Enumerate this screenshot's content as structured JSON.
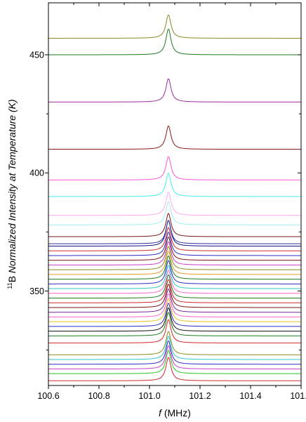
{
  "chart_data": {
    "type": "line",
    "title": "",
    "xlabel": {
      "symbol": "f",
      "rest": " (MHz)"
    },
    "ylabel": {
      "sup": "11",
      "element": "B",
      "rest": " Normalized Intensity at Temperature (K)"
    },
    "xlim": [
      100.6,
      101.6
    ],
    "ylim": [
      310,
      472
    ],
    "x_ticks": [
      100.6,
      100.8,
      101.0,
      101.2,
      101.4,
      101.6
    ],
    "x_tick_labels": [
      "100.6",
      "100.8",
      "101.0",
      "101.2",
      "101.4",
      "101.6"
    ],
    "y_ticks": [
      350,
      400,
      450
    ],
    "y_tick_labels": [
      "350",
      "400",
      "450"
    ],
    "peak_center_mhz": 101.075,
    "peak_width_mhz": 0.012,
    "grid": false,
    "legend": "none",
    "series": [
      {
        "temperature": 312,
        "color": "#d22828",
        "amplitude": 10
      },
      {
        "temperature": 315,
        "color": "#27c427",
        "amplitude": 10
      },
      {
        "temperature": 317,
        "color": "#c83cc8",
        "amplitude": 10
      },
      {
        "temperature": 319,
        "color": "#2d2dc8",
        "amplitude": 10
      },
      {
        "temperature": 321,
        "color": "#2ec8c8",
        "amplitude": 10
      },
      {
        "temperature": 323,
        "color": "#8a8a22",
        "amplitude": 10
      },
      {
        "temperature": 328,
        "color": "#d22828",
        "amplitude": 10
      },
      {
        "temperature": 331,
        "color": "#1e7b1e",
        "amplitude": 10
      },
      {
        "temperature": 333,
        "color": "#111111",
        "amplitude": 10
      },
      {
        "temperature": 335,
        "color": "#2d2dc8",
        "amplitude": 10
      },
      {
        "temperature": 337,
        "color": "#e8c020",
        "amplitude": 10
      },
      {
        "temperature": 339,
        "color": "#ff66cc",
        "amplitude": 10
      },
      {
        "temperature": 341,
        "color": "#7b2a9e",
        "amplitude": 10
      },
      {
        "temperature": 343,
        "color": "#7a1616",
        "amplitude": 10
      },
      {
        "temperature": 345,
        "color": "#d22828",
        "amplitude": 10
      },
      {
        "temperature": 347,
        "color": "#1e7b1e",
        "amplitude": 10
      },
      {
        "temperature": 349,
        "color": "#ff66cc",
        "amplitude": 10
      },
      {
        "temperature": 351,
        "color": "#2ec8c8",
        "amplitude": 10
      },
      {
        "temperature": 353,
        "color": "#2d2dc8",
        "amplitude": 10
      },
      {
        "temperature": 355,
        "color": "#1e7b1e",
        "amplitude": 10
      },
      {
        "temperature": 357,
        "color": "#e89a20",
        "amplitude": 10
      },
      {
        "temperature": 359,
        "color": "#8a8a22",
        "amplitude": 10
      },
      {
        "temperature": 361,
        "color": "#c83cc8",
        "amplitude": 10
      },
      {
        "temperature": 363,
        "color": "#7a1616",
        "amplitude": 10
      },
      {
        "temperature": 365,
        "color": "#2d2dc8",
        "amplitude": 10
      },
      {
        "temperature": 367,
        "color": "#d22828",
        "amplitude": 10
      },
      {
        "temperature": 369,
        "color": "#111188",
        "amplitude": 11
      },
      {
        "temperature": 370,
        "color": "#2d2d9e",
        "amplitude": 10
      },
      {
        "temperature": 373,
        "color": "#7a1616",
        "amplitude": 10
      },
      {
        "temperature": 378,
        "color": "#9ef0f0",
        "amplitude": 10
      },
      {
        "temperature": 382,
        "color": "#ffaaee",
        "amplitude": 10
      },
      {
        "temperature": 390,
        "color": "#44eeee",
        "amplitude": 10
      },
      {
        "temperature": 397,
        "color": "#ff55dd",
        "amplitude": 10
      },
      {
        "temperature": 410,
        "color": "#8a1a1a",
        "amplitude": 10
      },
      {
        "temperature": 430,
        "color": "#9c2a9c",
        "amplitude": 10
      },
      {
        "temperature": 450,
        "color": "#1e7b1e",
        "amplitude": 11
      },
      {
        "temperature": 457,
        "color": "#8a8a22",
        "amplitude": 10
      }
    ]
  }
}
